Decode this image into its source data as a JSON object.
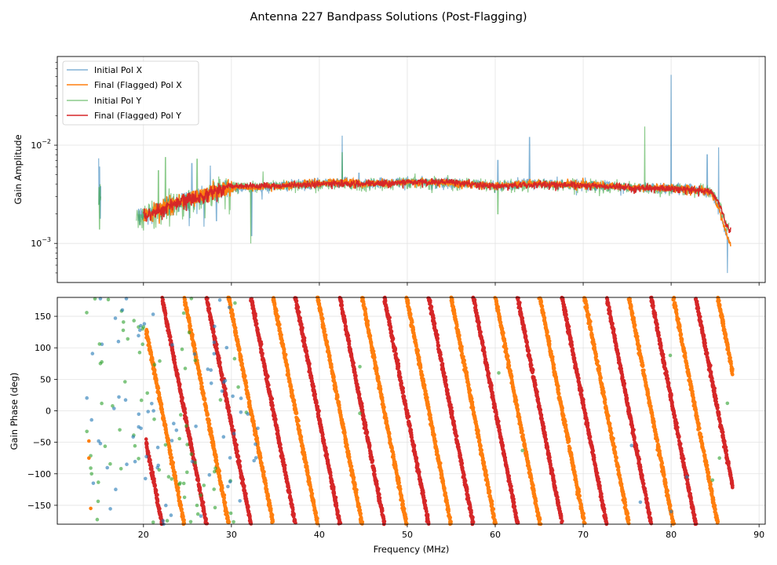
{
  "title": "Antenna 227 Bandpass Solutions (Post-Flagging)",
  "chart_data": [
    {
      "type": "line",
      "panel": "top",
      "ylabel": "Gain Amplitude",
      "yscale": "log",
      "ylim": [
        0.0004,
        0.08
      ],
      "xlim": [
        10.2,
        90.7
      ],
      "x_ticks": [
        20,
        30,
        40,
        50,
        60,
        70,
        80,
        90
      ],
      "y_ticks": [
        {
          "value": 0.001,
          "base": "10",
          "exp": "−3"
        },
        {
          "value": 0.01,
          "base": "10",
          "exp": "−2"
        }
      ],
      "grid": true,
      "legend": {
        "position": "top-left",
        "entries": [
          "Initial Pol X",
          "Final (Flagged) Pol X",
          "Initial Pol Y",
          "Final (Flagged) Pol Y"
        ]
      },
      "series": [
        {
          "name": "Initial Pol X",
          "color": "#1f77b4",
          "alpha": 0.55,
          "notes": "noisy, unflagged; spikes and dips (RFI) throughout"
        },
        {
          "name": "Final (Flagged) Pol X",
          "color": "#ff7f0e",
          "x": [
            20.0,
            22.0,
            24.0,
            26.0,
            28.0,
            29.5,
            31.5,
            33.0,
            36.0,
            40.0,
            42.0,
            45.0,
            50.0,
            55.0,
            60.0,
            65.0,
            70.0,
            75.0,
            80.0,
            83.0,
            84.5,
            85.5,
            86.2,
            86.8
          ],
          "values": [
            0.0019,
            0.0023,
            0.0027,
            0.003,
            0.0034,
            0.0037,
            0.0037,
            0.0037,
            0.0039,
            0.0041,
            0.0043,
            0.0041,
            0.0042,
            0.0041,
            0.0039,
            0.0041,
            0.004,
            0.0037,
            0.0037,
            0.0035,
            0.0033,
            0.0022,
            0.0013,
            0.00095
          ]
        },
        {
          "name": "Initial Pol Y",
          "color": "#2ca02c",
          "alpha": 0.55,
          "notes": "noisy, unflagged; spikes and dips (RFI) throughout"
        },
        {
          "name": "Final (Flagged) Pol Y",
          "color": "#d62728",
          "x": [
            20.0,
            22.0,
            24.0,
            26.0,
            28.0,
            29.5,
            31.5,
            33.0,
            36.0,
            40.0,
            42.0,
            45.0,
            50.0,
            55.0,
            60.0,
            65.0,
            70.0,
            75.0,
            80.0,
            83.0,
            84.5,
            85.5,
            86.2,
            86.8
          ],
          "values": [
            0.0019,
            0.0022,
            0.0026,
            0.0029,
            0.0034,
            0.0038,
            0.0038,
            0.0038,
            0.0039,
            0.004,
            0.0041,
            0.004,
            0.0042,
            0.0042,
            0.0038,
            0.004,
            0.0039,
            0.0037,
            0.0036,
            0.0035,
            0.0034,
            0.0025,
            0.0016,
            0.0013
          ]
        }
      ]
    },
    {
      "type": "scatter",
      "panel": "bottom",
      "xlabel": "Frequency (MHz)",
      "ylabel": "Gain Phase (deg)",
      "ylim": [
        -180,
        180
      ],
      "xlim": [
        10.2,
        90.7
      ],
      "x_ticks": [
        20,
        30,
        40,
        50,
        60,
        70,
        80,
        90
      ],
      "y_ticks": [
        -150,
        -100,
        -50,
        0,
        50,
        100,
        150
      ],
      "grid": true,
      "series": [
        {
          "name": "Initial Pol X",
          "color": "#1f77b4",
          "notes": "scattered points mostly hidden below final solutions"
        },
        {
          "name": "Final (Flagged) Pol X",
          "color": "#ff7f0e",
          "phase_slope_deg_per_mhz": -71.2,
          "phase_at_87_mhz": 60,
          "x_range": [
            20,
            87
          ],
          "notes": "phase wraps from +180 to -180 roughly every 5 MHz"
        },
        {
          "name": "Initial Pol Y",
          "color": "#2ca02c",
          "notes": "scattered points near 14-33 MHz"
        },
        {
          "name": "Final (Flagged) Pol Y",
          "color": "#d62728",
          "phase_slope_deg_per_mhz": -71.2,
          "phase_at_87_mhz": -120,
          "x_range": [
            20,
            87
          ],
          "notes": "phase wraps from +180 to -180 roughly every 5 MHz"
        }
      ]
    }
  ]
}
